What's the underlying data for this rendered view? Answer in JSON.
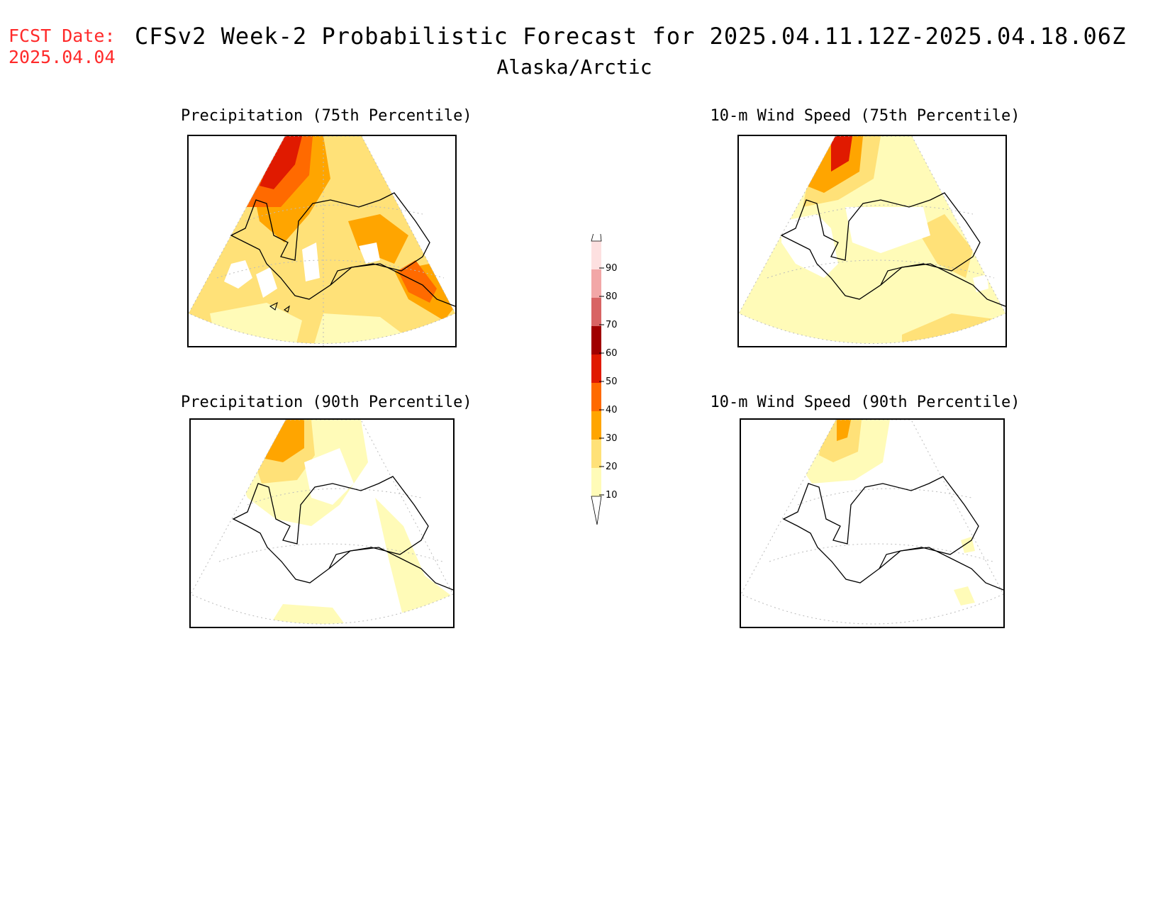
{
  "fcst": {
    "label": "FCST Date:",
    "date": "2025.04.04"
  },
  "title": "CFSv2 Week-2 Probabilistic Forecast for 2025.04.11.12Z-2025.04.18.06Z",
  "region": "Alaska/Arctic",
  "panels": [
    {
      "id": "precip75",
      "title": "Precipitation (75th Percentile)"
    },
    {
      "id": "wind75",
      "title": "10-m Wind Speed (75th Percentile)"
    },
    {
      "id": "precip90",
      "title": "Precipitation (90th Percentile)"
    },
    {
      "id": "wind90",
      "title": "10-m Wind Speed (90th Percentile)"
    }
  ],
  "colorbar": {
    "levels": [
      "10",
      "20",
      "30",
      "40",
      "50",
      "60",
      "70",
      "80",
      "90"
    ],
    "colors": [
      "#fffbb8",
      "#ffe178",
      "#ffa500",
      "#ff6a00",
      "#e01a00",
      "#a00000",
      "#d86464",
      "#f2a7a7",
      "#fde0e0"
    ],
    "tip_color": "#ffffff"
  }
}
